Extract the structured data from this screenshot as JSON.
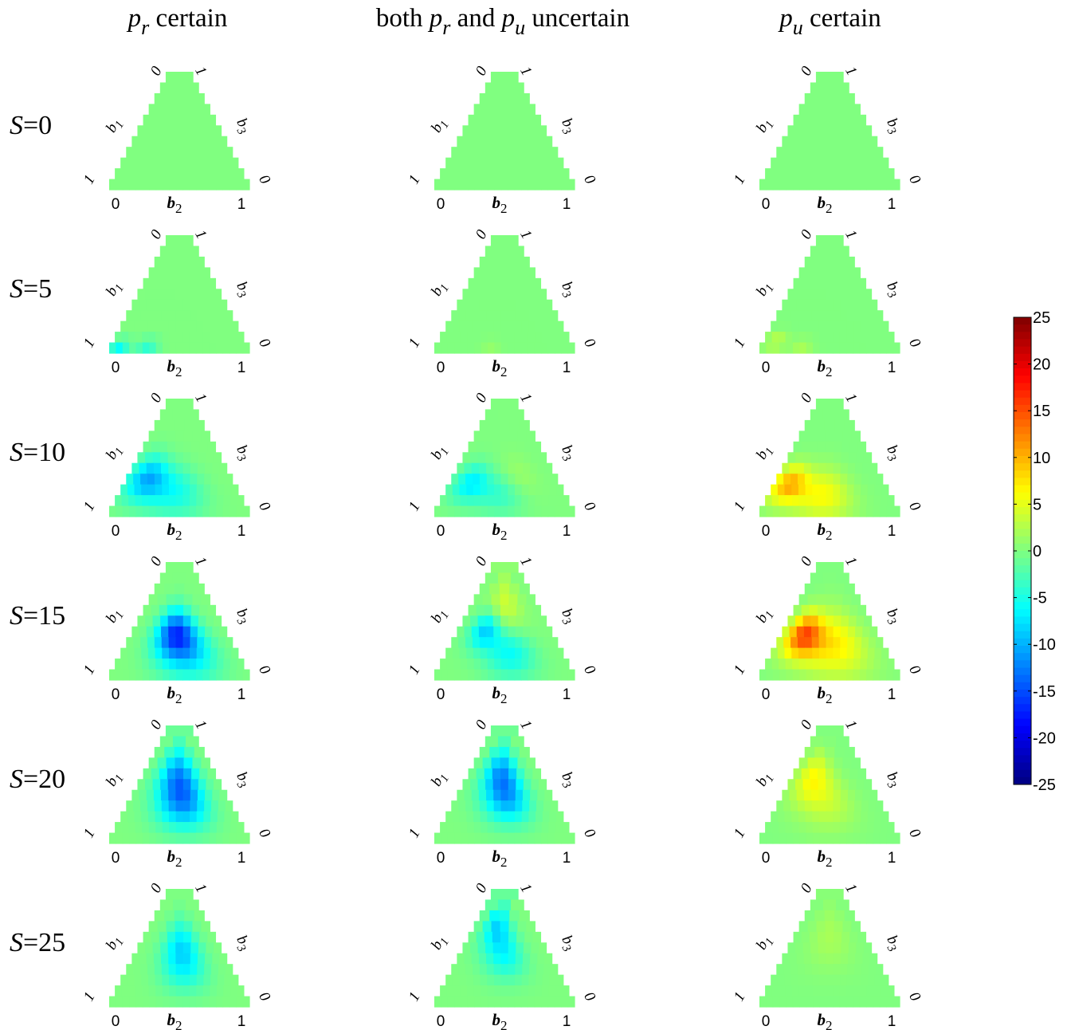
{
  "chart_data": {
    "type": "heatmap",
    "layout": "6 rows x 3 columns of ternary-simplex heatmaps with one shared colorbar",
    "column_titles": [
      [
        {
          "t": "p",
          "i": true
        },
        {
          "t": "r",
          "i": true,
          "sub": true
        },
        {
          "t": " certain"
        }
      ],
      [
        {
          "t": "both "
        },
        {
          "t": "p",
          "i": true
        },
        {
          "t": "r",
          "i": true,
          "sub": true
        },
        {
          "t": " and "
        },
        {
          "t": "p",
          "i": true
        },
        {
          "t": "u",
          "i": true,
          "sub": true
        },
        {
          "t": " uncertain"
        }
      ],
      [
        {
          "t": "p",
          "i": true
        },
        {
          "t": "u",
          "i": true,
          "sub": true
        },
        {
          "t": " certain"
        }
      ]
    ],
    "row_labels": [
      "S=0",
      "S=5",
      "S=10",
      "S=15",
      "S=20",
      "S=25"
    ],
    "row_label_var": "S",
    "row_label_values": [
      "0",
      "5",
      "10",
      "15",
      "20",
      "25"
    ],
    "axes": {
      "bottom": {
        "label": "b",
        "subscript": "2",
        "min": "0",
        "max": "1"
      },
      "left": {
        "label": "b",
        "subscript": "1",
        "top": "0",
        "bottom": "1"
      },
      "right": {
        "label": "b",
        "subscript": "3",
        "top": "1",
        "bottom": "0"
      }
    },
    "grid_rows": 11,
    "colorbar": {
      "min": -25,
      "max": 25,
      "ticks": [
        25,
        20,
        15,
        10,
        5,
        0,
        -5,
        -10,
        -15,
        -20,
        -25
      ],
      "colormap": "jet"
    },
    "panels": [
      [
        {
          "blobs": []
        },
        {
          "blobs": [
            {
              "y": 0.95,
              "x": 0.07,
              "v": -6,
              "s": 0.07
            },
            {
              "y": 0.95,
              "x": 0.27,
              "v": -4,
              "s": 0.08
            }
          ]
        },
        {
          "blobs": [
            {
              "y": 0.68,
              "x": 0.2,
              "v": -10,
              "s": 0.19
            },
            {
              "y": 0.8,
              "x": 0.48,
              "v": -5,
              "s": 0.22
            }
          ]
        },
        {
          "blobs": [
            {
              "y": 0.6,
              "x": 0.46,
              "v": -14,
              "s": 0.2
            },
            {
              "y": 0.78,
              "x": 0.58,
              "v": -7,
              "s": 0.24
            }
          ]
        },
        {
          "blobs": [
            {
              "y": 0.44,
              "x": 0.48,
              "v": -11,
              "s": 0.26
            },
            {
              "y": 0.68,
              "x": 0.55,
              "v": -8,
              "s": 0.22
            }
          ]
        },
        {
          "blobs": [
            {
              "y": 0.48,
              "x": 0.52,
              "v": -7,
              "s": 0.22
            },
            {
              "y": 0.7,
              "x": 0.55,
              "v": -4,
              "s": 0.2
            }
          ]
        }
      ],
      [
        {
          "blobs": []
        },
        {
          "blobs": [
            {
              "y": 0.95,
              "x": 0.4,
              "v": 1,
              "s": 0.07
            }
          ]
        },
        {
          "blobs": [
            {
              "y": 0.72,
              "x": 0.2,
              "v": -7,
              "s": 0.16
            },
            {
              "y": 0.8,
              "x": 0.48,
              "v": -4,
              "s": 0.18
            },
            {
              "y": 0.68,
              "x": 0.6,
              "v": 2,
              "s": 0.18
            }
          ]
        },
        {
          "blobs": [
            {
              "y": 0.58,
              "x": 0.3,
              "v": -9,
              "s": 0.16
            },
            {
              "y": 0.78,
              "x": 0.55,
              "v": -6,
              "s": 0.2
            },
            {
              "y": 0.36,
              "x": 0.5,
              "v": 4,
              "s": 0.24
            }
          ]
        },
        {
          "blobs": [
            {
              "y": 0.42,
              "x": 0.45,
              "v": -11,
              "s": 0.24
            },
            {
              "y": 0.65,
              "x": 0.55,
              "v": -7,
              "s": 0.2
            }
          ]
        },
        {
          "blobs": [
            {
              "y": 0.32,
              "x": 0.38,
              "v": -8,
              "s": 0.22
            },
            {
              "y": 0.58,
              "x": 0.52,
              "v": -5,
              "s": 0.2
            }
          ]
        }
      ],
      [
        {
          "blobs": []
        },
        {
          "blobs": [
            {
              "y": 0.9,
              "x": 0.1,
              "v": 3,
              "s": 0.08
            },
            {
              "y": 0.95,
              "x": 0.3,
              "v": 2,
              "s": 0.08
            }
          ]
        },
        {
          "blobs": [
            {
              "y": 0.73,
              "x": 0.14,
              "v": 10,
              "s": 0.16
            },
            {
              "y": 0.82,
              "x": 0.45,
              "v": 6,
              "s": 0.22
            }
          ]
        },
        {
          "blobs": [
            {
              "y": 0.62,
              "x": 0.24,
              "v": 14,
              "s": 0.18
            },
            {
              "y": 0.7,
              "x": 0.55,
              "v": 7,
              "s": 0.28
            }
          ]
        },
        {
          "blobs": [
            {
              "y": 0.45,
              "x": 0.28,
              "v": 6,
              "s": 0.22
            },
            {
              "y": 0.66,
              "x": 0.5,
              "v": 3,
              "s": 0.24
            }
          ]
        },
        {
          "blobs": [
            {
              "y": 0.4,
              "x": 0.5,
              "v": 2,
              "s": 0.28
            }
          ]
        }
      ]
    ]
  }
}
